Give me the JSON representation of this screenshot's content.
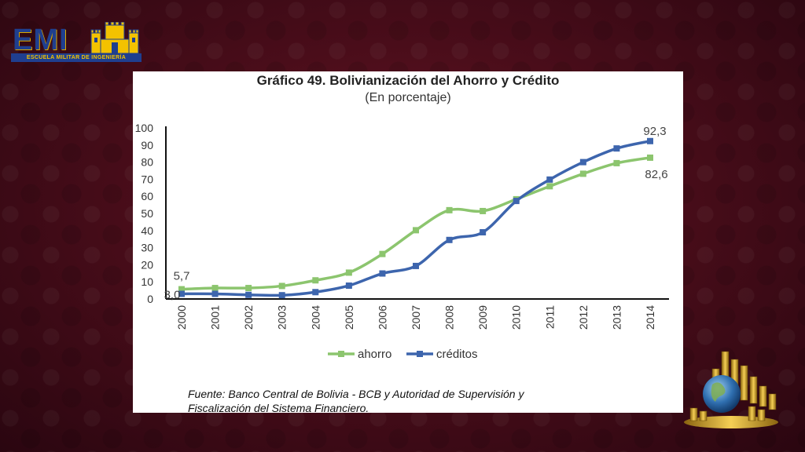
{
  "logo": {
    "name": "EMI",
    "band_text": "ESCUELA MILITAR DE INGENIERÍA",
    "colors": {
      "blue": "#1f3f8f",
      "gold": "#f3c200"
    }
  },
  "chart_data": {
    "type": "line",
    "title": "Gráfico 49. Bolivianización del Ahorro y Crédito",
    "subtitle": "(En porcentaje)",
    "categories": [
      "2000",
      "2001",
      "2002",
      "2003",
      "2004",
      "2005",
      "2006",
      "2007",
      "2008",
      "2009",
      "2010",
      "2011",
      "2012",
      "2013",
      "2014"
    ],
    "series": [
      {
        "name": "ahorro",
        "color": "#8cc56e",
        "values": [
          5.7,
          6.4,
          6.4,
          7.6,
          10.9,
          15.4,
          26.3,
          40.2,
          51.9,
          51.4,
          58.3,
          65.9,
          73.2,
          79.4,
          82.6
        ]
      },
      {
        "name": "créditos",
        "color": "#3d65ad",
        "values": [
          3.0,
          3.0,
          2.4,
          2.2,
          4.0,
          7.8,
          14.9,
          19.3,
          34.5,
          39.0,
          57.3,
          69.8,
          80.0,
          88.0,
          92.3
        ]
      }
    ],
    "data_labels": [
      {
        "series": "ahorro",
        "category": "2000",
        "text": "5,7"
      },
      {
        "series": "créditos",
        "category": "2000",
        "text": "3,0"
      },
      {
        "series": "créditos",
        "category": "2014",
        "text": "92,3"
      },
      {
        "series": "ahorro",
        "category": "2014",
        "text": "82,6"
      }
    ],
    "ylim": [
      0,
      100
    ],
    "yticks": [
      0,
      10,
      20,
      30,
      40,
      50,
      60,
      70,
      80,
      90,
      100
    ],
    "grid": false,
    "legend_position": "bottom",
    "xlabel": "",
    "ylabel": ""
  },
  "source": {
    "line1": "Fuente: Banco Central de Bolivia - BCB y Autoridad de Supervisión y",
    "line2": "Fiscalización del Sistema Financiero."
  },
  "decor": {
    "coins_image_icon": "coins-globe-icon"
  }
}
